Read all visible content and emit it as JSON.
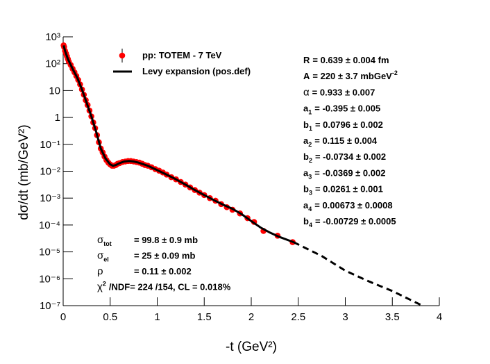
{
  "chart_data": {
    "type": "scatter",
    "x_label": "-t (GeV²)",
    "y_label": "dσ/dt (mb/GeV²)",
    "xlim": [
      0,
      4
    ],
    "xticks": [
      0,
      0.5,
      1,
      1.5,
      2,
      2.5,
      3,
      3.5,
      4
    ],
    "ylim": [
      1e-07,
      1000
    ],
    "ylog": true,
    "yticks": [
      {
        "value": 1e-07,
        "label": "10⁻⁷"
      },
      {
        "value": 1e-06,
        "label": "10⁻⁶"
      },
      {
        "value": 1e-05,
        "label": "10⁻⁵"
      },
      {
        "value": 0.0001,
        "label": "10⁻⁴"
      },
      {
        "value": 0.001,
        "label": "10⁻³"
      },
      {
        "value": 0.01,
        "label": "10⁻²"
      },
      {
        "value": 0.1,
        "label": "10⁻¹"
      },
      {
        "value": 1,
        "label": "1"
      },
      {
        "value": 10,
        "label": "10"
      },
      {
        "value": 100,
        "label": "10²"
      },
      {
        "value": 1000,
        "label": "10³"
      }
    ],
    "series": [
      {
        "name": "pp: TOTEM - 7 TeV",
        "type": "scatter",
        "color": "#ff0000",
        "x": [
          0.005,
          0.01,
          0.02,
          0.03,
          0.04,
          0.05,
          0.06,
          0.08,
          0.1,
          0.12,
          0.14,
          0.16,
          0.18,
          0.2,
          0.22,
          0.24,
          0.26,
          0.28,
          0.3,
          0.32,
          0.34,
          0.36,
          0.38,
          0.4,
          0.42,
          0.44,
          0.46,
          0.48,
          0.5,
          0.52,
          0.54,
          0.56,
          0.58,
          0.6,
          0.63,
          0.66,
          0.69,
          0.72,
          0.75,
          0.78,
          0.81,
          0.84,
          0.87,
          0.9,
          0.94,
          0.98,
          1.02,
          1.06,
          1.1,
          1.15,
          1.2,
          1.25,
          1.3,
          1.35,
          1.4,
          1.45,
          1.5,
          1.56,
          1.62,
          1.68,
          1.74,
          1.8,
          1.88,
          1.96,
          2.03,
          2.13,
          2.28,
          2.44
        ],
        "values": [
          480,
          420,
          300,
          240,
          190,
          150,
          120,
          90,
          65,
          48,
          35,
          25,
          17,
          11,
          7,
          4.4,
          2.9,
          1.8,
          1.1,
          0.65,
          0.4,
          0.22,
          0.12,
          0.07,
          0.05,
          0.035,
          0.026,
          0.021,
          0.018,
          0.016,
          0.016,
          0.017,
          0.019,
          0.02,
          0.022,
          0.023,
          0.024,
          0.024,
          0.023,
          0.022,
          0.021,
          0.019,
          0.017,
          0.016,
          0.014,
          0.012,
          0.0105,
          0.009,
          0.0075,
          0.006,
          0.005,
          0.004,
          0.0032,
          0.0025,
          0.002,
          0.0016,
          0.0013,
          0.001,
          0.0008,
          0.0006,
          0.00046,
          0.00037,
          0.00027,
          0.00018,
          0.00013,
          6e-05,
          4e-05,
          2.3e-05
        ]
      },
      {
        "name": "Levy expansion (pos.def)",
        "type": "line",
        "color": "#000000",
        "x": [
          0.005,
          0.02,
          0.05,
          0.1,
          0.15,
          0.2,
          0.25,
          0.3,
          0.35,
          0.4,
          0.45,
          0.5,
          0.53,
          0.56,
          0.6,
          0.65,
          0.7,
          0.75,
          0.8,
          0.9,
          1.0,
          1.1,
          1.2,
          1.3,
          1.4,
          1.5,
          1.6,
          1.7,
          1.8,
          1.9,
          2.0,
          2.1,
          2.2,
          2.3,
          2.45
        ],
        "values": [
          480,
          300,
          150,
          65,
          30,
          11,
          3.5,
          1.1,
          0.3,
          0.07,
          0.03,
          0.018,
          0.016,
          0.017,
          0.02,
          0.023,
          0.024,
          0.023,
          0.021,
          0.016,
          0.011,
          0.0075,
          0.005,
          0.0032,
          0.002,
          0.0013,
          0.00085,
          0.00057,
          0.0004,
          0.00025,
          0.00014,
          8e-05,
          5.2e-05,
          3.6e-05,
          2.3e-05
        ]
      },
      {
        "type": "line",
        "dashed": true,
        "color": "#000000",
        "x": [
          2.45,
          2.75,
          3.0,
          3.25,
          3.5,
          3.82
        ],
        "values": [
          2.3e-05,
          7e-06,
          2e-06,
          8e-07,
          3.5e-07,
          1e-07
        ]
      }
    ],
    "fit_parameters": [
      {
        "symbol": "R",
        "text": "= 0.639 ± 0.004 fm"
      },
      {
        "symbol": "A",
        "text": "= 220 ± 3.7 mbGeV",
        "text_sup": "-2"
      },
      {
        "symbol": "α",
        "text": "= 0.933 ± 0.007"
      },
      {
        "symbol": "a",
        "sub": "1",
        "text": "= -0.395 ± 0.005"
      },
      {
        "symbol": "b",
        "sub": "1",
        "text": "= 0.0796 ± 0.002"
      },
      {
        "symbol": "a",
        "sub": "2",
        "text": "= 0.115 ± 0.004"
      },
      {
        "symbol": "b",
        "sub": "2",
        "text": "= -0.0734 ± 0.002"
      },
      {
        "symbol": "a",
        "sub": "3",
        "text": "= -0.0369 ± 0.002"
      },
      {
        "symbol": "b",
        "sub": "3",
        "text": "= 0.0261 ± 0.001"
      },
      {
        "symbol": "a",
        "sub": "4",
        "text": "= 0.00673 ± 0.0008"
      },
      {
        "symbol": "b",
        "sub": "4",
        "text": "= -0.00729 ± 0.0005"
      }
    ],
    "fit_results": [
      {
        "symbol": "σ",
        "sub": "tot",
        "text": "= 99.8 ± 0.9 mb"
      },
      {
        "symbol": "σ",
        "sub": "el",
        "text": "= 25 ± 0.09 mb"
      },
      {
        "symbol": "ρ",
        "text": "= 0.11 ± 0.002"
      },
      {
        "symbol": "χ",
        "sup": "2",
        "text": "/NDF= 224 /154,  CL = 0.018%"
      }
    ]
  }
}
